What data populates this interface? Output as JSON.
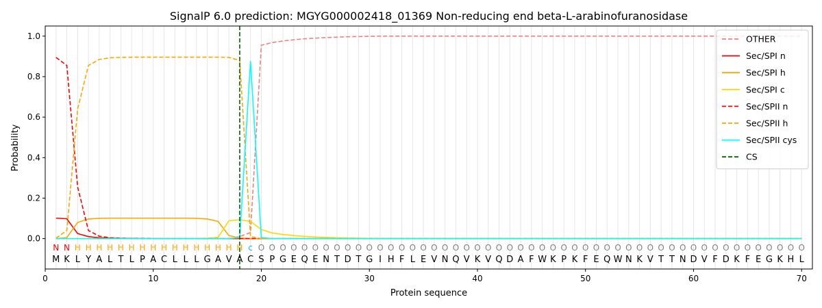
{
  "chart_data": {
    "type": "line",
    "title": "SignalP 6.0 prediction: MGYG000002418_01369 Non-reducing end beta-L-arabinofuranosidase",
    "xlabel": "Protein sequence",
    "ylabel": "Probability",
    "xlim": [
      0,
      71
    ],
    "ylim": [
      -0.15,
      1.05
    ],
    "xticks": [
      0,
      10,
      20,
      30,
      40,
      50,
      60,
      70
    ],
    "yticks": [
      0.0,
      0.2,
      0.4,
      0.6,
      0.8,
      1.0
    ],
    "ytick_labels": [
      "0.0",
      "0.2",
      "0.4",
      "0.6",
      "0.8",
      "1.0"
    ],
    "legend_position": "top-right",
    "sequence": [
      "M",
      "K",
      "L",
      "Y",
      "A",
      "L",
      "T",
      "L",
      "P",
      "A",
      "C",
      "L",
      "L",
      "L",
      "G",
      "A",
      "V",
      "A",
      "C",
      "S",
      "P",
      "G",
      "E",
      "Q",
      "E",
      "N",
      "T",
      "D",
      "T",
      "G",
      "I",
      "H",
      "F",
      "L",
      "E",
      "V",
      "N",
      "Q",
      "V",
      "K",
      "V",
      "Q",
      "D",
      "A",
      "F",
      "W",
      "K",
      "P",
      "K",
      "F",
      "E",
      "Q",
      "W",
      "N",
      "K",
      "V",
      "T",
      "T",
      "N",
      "D",
      "V",
      "F",
      "D",
      "K",
      "F",
      "E",
      "G",
      "K",
      "H",
      "L"
    ],
    "region_labels": [
      "N",
      "N",
      "H",
      "H",
      "H",
      "H",
      "H",
      "H",
      "H",
      "H",
      "H",
      "H",
      "H",
      "H",
      "H",
      "H",
      "H",
      "H",
      "c",
      "O",
      "O",
      "O",
      "O",
      "O",
      "O",
      "O",
      "O",
      "O",
      "O",
      "O",
      "O",
      "O",
      "O",
      "O",
      "O",
      "O",
      "O",
      "O",
      "O",
      "O",
      "O",
      "O",
      "O",
      "O",
      "O",
      "O",
      "O",
      "O",
      "O",
      "O",
      "O",
      "O",
      "O",
      "O",
      "O",
      "O",
      "O",
      "O",
      "O",
      "O",
      "O",
      "O",
      "O",
      "O",
      "O",
      "O",
      "O",
      "O",
      "O",
      "O"
    ],
    "region_colors": {
      "N": "#ff0000",
      "H": "#ffa500",
      "c": "#00bfff",
      "O": "#808080"
    },
    "cs_position": 18,
    "series": [
      {
        "name": "OTHER",
        "color": "#f08080",
        "dash": "dashed",
        "values": [
          0.0,
          0.0,
          0.0,
          0.0,
          0.0,
          0.0,
          0.0,
          0.0,
          0.0,
          0.0,
          0.0,
          0.0,
          0.0,
          0.0,
          0.0,
          0.0,
          0.0,
          0.01,
          0.03,
          0.955,
          0.968,
          0.976,
          0.982,
          0.987,
          0.99,
          0.993,
          0.995,
          0.997,
          0.998,
          0.999,
          1.0,
          1.0,
          1.0,
          1.0,
          1.0,
          1.0,
          1.0,
          1.0,
          1.0,
          1.0,
          1.0,
          1.0,
          1.0,
          1.0,
          1.0,
          1.0,
          1.0,
          1.0,
          1.0,
          1.0,
          1.0,
          1.0,
          1.0,
          1.0,
          1.0,
          1.0,
          1.0,
          1.0,
          1.0,
          1.0,
          1.0,
          1.0,
          1.0,
          1.0,
          1.0,
          1.0,
          1.0,
          1.0,
          1.0,
          1.0
        ]
      },
      {
        "name": "Sec/SPI n",
        "color": "#ff0000",
        "dash": "solid",
        "values": [
          0.101,
          0.098,
          0.025,
          0.01,
          0.004,
          0.002,
          0.001,
          0.001,
          0.0,
          0.0,
          0.0,
          0.0,
          0.0,
          0.0,
          0.0,
          0.0,
          0.0,
          0.0,
          0.0,
          0.0,
          0.0,
          0.0,
          0.0,
          0.0,
          0.0,
          0.0,
          0.0,
          0.0,
          0.0,
          0.0,
          0.0,
          0.0,
          0.0,
          0.0,
          0.0,
          0.0,
          0.0,
          0.0,
          0.0,
          0.0,
          0.0,
          0.0,
          0.0,
          0.0,
          0.0,
          0.0,
          0.0,
          0.0,
          0.0,
          0.0,
          0.0,
          0.0,
          0.0,
          0.0,
          0.0,
          0.0,
          0.0,
          0.0,
          0.0,
          0.0,
          0.0,
          0.0,
          0.0,
          0.0,
          0.0,
          0.0,
          0.0,
          0.0,
          0.0,
          0.0
        ]
      },
      {
        "name": "Sec/SPI h",
        "color": "#ffa500",
        "dash": "solid",
        "values": [
          0.0,
          0.005,
          0.08,
          0.097,
          0.1,
          0.101,
          0.101,
          0.101,
          0.101,
          0.101,
          0.101,
          0.101,
          0.101,
          0.1,
          0.097,
          0.085,
          0.015,
          0.003,
          0.001,
          0.0,
          0.0,
          0.0,
          0.0,
          0.0,
          0.0,
          0.0,
          0.0,
          0.0,
          0.0,
          0.0,
          0.0,
          0.0,
          0.0,
          0.0,
          0.0,
          0.0,
          0.0,
          0.0,
          0.0,
          0.0,
          0.0,
          0.0,
          0.0,
          0.0,
          0.0,
          0.0,
          0.0,
          0.0,
          0.0,
          0.0,
          0.0,
          0.0,
          0.0,
          0.0,
          0.0,
          0.0,
          0.0,
          0.0,
          0.0,
          0.0,
          0.0,
          0.0,
          0.0,
          0.0,
          0.0,
          0.0,
          0.0,
          0.0,
          0.0,
          0.0
        ]
      },
      {
        "name": "Sec/SPI c",
        "color": "#ffd700",
        "dash": "solid",
        "values": [
          0.0,
          0.0,
          0.0,
          0.0,
          0.0,
          0.0,
          0.0,
          0.0,
          0.0,
          0.0,
          0.0,
          0.0,
          0.0,
          0.0,
          0.002,
          0.006,
          0.088,
          0.093,
          0.085,
          0.045,
          0.028,
          0.02,
          0.015,
          0.011,
          0.008,
          0.006,
          0.004,
          0.003,
          0.002,
          0.001,
          0.001,
          0.0,
          0.0,
          0.0,
          0.0,
          0.0,
          0.0,
          0.0,
          0.0,
          0.0,
          0.0,
          0.0,
          0.0,
          0.0,
          0.0,
          0.0,
          0.0,
          0.0,
          0.0,
          0.0,
          0.0,
          0.0,
          0.0,
          0.0,
          0.0,
          0.0,
          0.0,
          0.0,
          0.0,
          0.0,
          0.0,
          0.0,
          0.0,
          0.0,
          0.0,
          0.0,
          0.0,
          0.0,
          0.0,
          0.0
        ]
      },
      {
        "name": "Sec/SPII n",
        "color": "#ff0000",
        "dash": "dashed",
        "values": [
          0.895,
          0.855,
          0.255,
          0.04,
          0.012,
          0.004,
          0.002,
          0.001,
          0.001,
          0.0,
          0.0,
          0.0,
          0.0,
          0.0,
          0.0,
          0.0,
          0.0,
          0.0,
          0.0,
          0.0,
          0.0,
          0.0,
          0.0,
          0.0,
          0.0,
          0.0,
          0.0,
          0.0,
          0.0,
          0.0,
          0.0,
          0.0,
          0.0,
          0.0,
          0.0,
          0.0,
          0.0,
          0.0,
          0.0,
          0.0,
          0.0,
          0.0,
          0.0,
          0.0,
          0.0,
          0.0,
          0.0,
          0.0,
          0.0,
          0.0,
          0.0,
          0.0,
          0.0,
          0.0,
          0.0,
          0.0,
          0.0,
          0.0,
          0.0,
          0.0,
          0.0,
          0.0,
          0.0,
          0.0,
          0.0,
          0.0,
          0.0,
          0.0,
          0.0,
          0.0
        ]
      },
      {
        "name": "Sec/SPII h",
        "color": "#ffa500",
        "dash": "dashed",
        "values": [
          0.002,
          0.04,
          0.64,
          0.855,
          0.885,
          0.893,
          0.895,
          0.896,
          0.896,
          0.896,
          0.896,
          0.896,
          0.896,
          0.896,
          0.896,
          0.896,
          0.895,
          0.88,
          0.01,
          0.0,
          0.0,
          0.0,
          0.0,
          0.0,
          0.0,
          0.0,
          0.0,
          0.0,
          0.0,
          0.0,
          0.0,
          0.0,
          0.0,
          0.0,
          0.0,
          0.0,
          0.0,
          0.0,
          0.0,
          0.0,
          0.0,
          0.0,
          0.0,
          0.0,
          0.0,
          0.0,
          0.0,
          0.0,
          0.0,
          0.0,
          0.0,
          0.0,
          0.0,
          0.0,
          0.0,
          0.0,
          0.0,
          0.0,
          0.0,
          0.0,
          0.0,
          0.0,
          0.0,
          0.0,
          0.0,
          0.0,
          0.0,
          0.0,
          0.0,
          0.0
        ]
      },
      {
        "name": "Sec/SPII cys",
        "color": "#00ffff",
        "dash": "solid",
        "values": [
          0.0,
          0.0,
          0.0,
          0.0,
          0.0,
          0.0,
          0.0,
          0.0,
          0.0,
          0.0,
          0.0,
          0.0,
          0.0,
          0.0,
          0.0,
          0.0,
          0.0,
          0.005,
          0.875,
          0.005,
          0.0,
          0.0,
          0.0,
          0.0,
          0.0,
          0.0,
          0.0,
          0.0,
          0.0,
          0.0,
          0.0,
          0.0,
          0.0,
          0.0,
          0.0,
          0.0,
          0.0,
          0.0,
          0.0,
          0.0,
          0.0,
          0.0,
          0.0,
          0.0,
          0.0,
          0.0,
          0.0,
          0.0,
          0.0,
          0.0,
          0.0,
          0.0,
          0.0,
          0.0,
          0.0,
          0.0,
          0.0,
          0.0,
          0.0,
          0.0,
          0.0,
          0.0,
          0.0,
          0.0,
          0.0,
          0.0,
          0.0,
          0.0,
          0.0,
          0.0
        ]
      }
    ],
    "cs_legend": {
      "name": "CS",
      "color": "#006400",
      "dash": "dashed"
    }
  }
}
